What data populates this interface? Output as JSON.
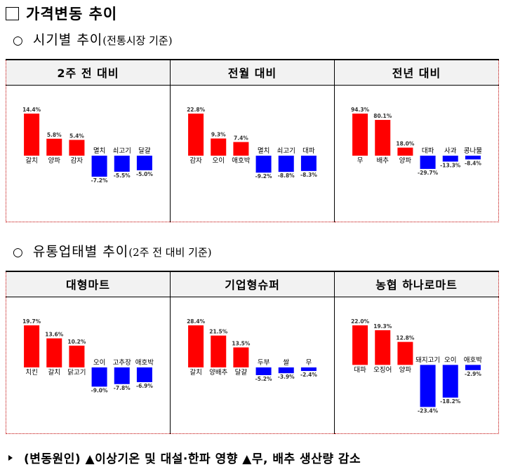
{
  "title": "가격변동 추이",
  "section1": {
    "bullet": "○",
    "title": "시기별 추이",
    "basis": "(전통시장 기준)",
    "headers": [
      "2주 전 대비",
      "전월 대비",
      "전년 대비"
    ]
  },
  "section2": {
    "bullet": "○",
    "title": "유통업태별 추이",
    "basis": "(2주 전 대비 기준)",
    "headers": [
      "대형마트",
      "기업형슈퍼",
      "농협 하나로마트"
    ]
  },
  "note": "(변동원인) ▲이상기온 및 대설·한파 영향 ▲무, 배추 생산량 감소",
  "colors": {
    "up": "#ff0000",
    "down": "#0000ff"
  },
  "chart_data": [
    {
      "type": "bar",
      "categories": [
        "갈치",
        "양파",
        "감자",
        "멸치",
        "쇠고기",
        "달걀"
      ],
      "values": [
        14.4,
        5.8,
        5.4,
        -7.2,
        -5.5,
        -5.0
      ],
      "labels": [
        "14.4%",
        "5.8%",
        "5.4%",
        "-7.2%",
        "-5.5%",
        "-5.0%"
      ]
    },
    {
      "type": "bar",
      "categories": [
        "감자",
        "오이",
        "애호박",
        "멸치",
        "쇠고기",
        "대파"
      ],
      "values": [
        22.8,
        9.3,
        7.4,
        -9.2,
        -8.8,
        -8.3
      ],
      "labels": [
        "22.8%",
        "9.3%",
        "7.4%",
        "-9.2%",
        "-8.8%",
        "-8.3%"
      ]
    },
    {
      "type": "bar",
      "categories": [
        "무",
        "배추",
        "양파",
        "대파",
        "사과",
        "콩나물"
      ],
      "values": [
        94.3,
        80.1,
        18.0,
        -29.7,
        -13.3,
        -8.4
      ],
      "labels": [
        "94.3%",
        "80.1%",
        "18.0%",
        "-29.7%",
        "-13.3%",
        "-8.4%"
      ]
    },
    {
      "type": "bar",
      "categories": [
        "치킨",
        "갈치",
        "닭고기",
        "오이",
        "고추장",
        "애호박"
      ],
      "values": [
        19.7,
        13.6,
        10.2,
        -9.0,
        -7.8,
        -6.9
      ],
      "labels": [
        "19.7%",
        "13.6%",
        "10.2%",
        "-9.0%",
        "-7.8%",
        "-6.9%"
      ]
    },
    {
      "type": "bar",
      "categories": [
        "갈치",
        "양배추",
        "달걀",
        "두부",
        "쌀",
        "무"
      ],
      "values": [
        28.4,
        21.5,
        13.5,
        -5.2,
        -3.9,
        -2.4
      ],
      "labels": [
        "28.4%",
        "21.5%",
        "13.5%",
        "-5.2%",
        "-3.9%",
        "-2.4%"
      ]
    },
    {
      "type": "bar",
      "categories": [
        "대파",
        "오징어",
        "양파",
        "돼지고기",
        "오이",
        "애호박"
      ],
      "values": [
        22.0,
        19.3,
        12.8,
        -23.4,
        -18.2,
        -2.9
      ],
      "labels": [
        "22.0%",
        "19.3%",
        "12.8%",
        "-23.4%",
        "-18.2%",
        "-2.9%"
      ]
    }
  ]
}
